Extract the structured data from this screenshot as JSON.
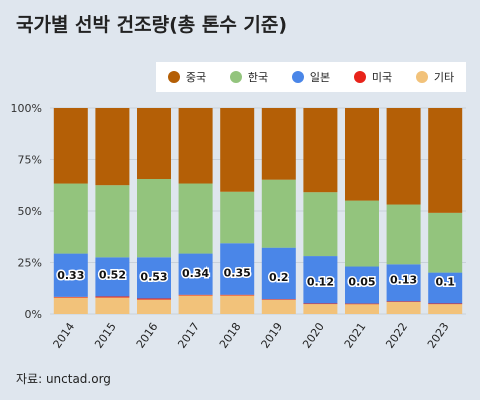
{
  "title": "국가별 선박 건조량(총 톤수 기준)",
  "source": "자료: unctad.org",
  "chart_data": {
    "type": "bar",
    "stacked": true,
    "normalized": true,
    "categories": [
      "2014",
      "2015",
      "2016",
      "2017",
      "2018",
      "2019",
      "2020",
      "2021",
      "2022",
      "2023"
    ],
    "ylim": [
      0,
      100
    ],
    "yticks": [
      "0%",
      "25%",
      "50%",
      "75%",
      "100%"
    ],
    "legend_position": "top-right",
    "series": [
      {
        "name": "기타",
        "color": "#f2c27a",
        "values": [
          8,
          8,
          7,
          9,
          9,
          7,
          5,
          5,
          6,
          5
        ]
      },
      {
        "name": "미국",
        "color": "#e8231a",
        "values": [
          0.33,
          0.52,
          0.53,
          0.34,
          0.35,
          0.2,
          0.12,
          0.05,
          0.13,
          0.1
        ]
      },
      {
        "name": "일본",
        "color": "#4a86e8",
        "values": [
          21,
          19,
          20,
          20,
          25,
          25,
          23,
          18,
          18,
          15
        ]
      },
      {
        "name": "한국",
        "color": "#93c47d",
        "values": [
          34,
          35,
          38,
          34,
          25,
          33,
          31,
          32,
          29,
          29
        ]
      },
      {
        "name": "중국",
        "color": "#b45f06",
        "values": [
          36.67,
          37.48,
          34.47,
          36.66,
          40.65,
          34.8,
          40.88,
          44.95,
          46.87,
          50.9
        ]
      }
    ],
    "data_labels": [
      "0.33",
      "0.52",
      "0.53",
      "0.34",
      "0.35",
      "0.2",
      "0.12",
      "0.05",
      "0.13",
      "0.1"
    ]
  },
  "legend": [
    {
      "name": "중국",
      "color": "#b45f06"
    },
    {
      "name": "한국",
      "color": "#93c47d"
    },
    {
      "name": "일본",
      "color": "#4a86e8"
    },
    {
      "name": "미국",
      "color": "#e8231a"
    },
    {
      "name": "기타",
      "color": "#f2c27a"
    }
  ]
}
